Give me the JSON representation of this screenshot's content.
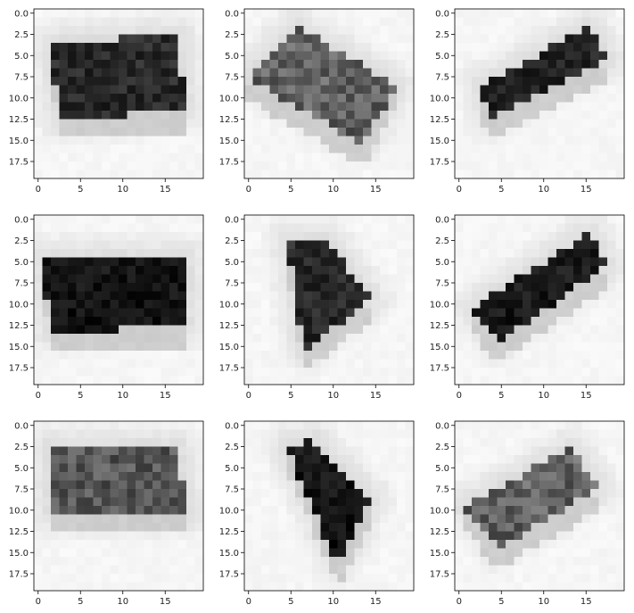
{
  "chart_data": {
    "type": "heatmap",
    "description": "3x3 grid of 20x20 grayscale pixel images",
    "grid": {
      "rows": 3,
      "cols": 3
    },
    "image_size": [
      20,
      20
    ],
    "x_ticks": [
      0,
      5,
      10,
      15
    ],
    "y_ticks": [
      0.0,
      2.5,
      5.0,
      7.5,
      10.0,
      12.5,
      15.0,
      17.5
    ],
    "x_tick_labels": [
      "0",
      "5",
      "10",
      "15"
    ],
    "y_tick_labels": [
      "0.0",
      "2.5",
      "5.0",
      "7.5",
      "10.0",
      "12.5",
      "15.0",
      "17.5"
    ],
    "colormap": "gray_r",
    "images": [
      {
        "shape": "parallelogram",
        "vertices": [
          [
            2,
            4
          ],
          [
            17,
            3
          ],
          [
            18,
            12
          ],
          [
            3,
            13
          ]
        ],
        "value": 0.82
      },
      {
        "shape": "parallelogram",
        "vertices": [
          [
            0,
            8
          ],
          [
            6,
            2
          ],
          [
            18,
            9
          ],
          [
            14,
            16
          ]
        ],
        "value": 0.6
      },
      {
        "shape": "parallelogram",
        "vertices": [
          [
            3,
            9
          ],
          [
            16,
            2
          ],
          [
            18,
            6
          ],
          [
            4,
            13
          ]
        ],
        "value": 0.85
      },
      {
        "shape": "parallelogram",
        "vertices": [
          [
            1,
            5
          ],
          [
            18,
            5
          ],
          [
            18,
            13
          ],
          [
            2,
            14
          ]
        ],
        "value": 0.9
      },
      {
        "shape": "parallelogram",
        "vertices": [
          [
            5,
            3
          ],
          [
            10,
            3
          ],
          [
            15,
            10
          ],
          [
            7,
            16
          ]
        ],
        "value": 0.82
      },
      {
        "shape": "parallelogram",
        "vertices": [
          [
            2,
            11
          ],
          [
            16,
            2
          ],
          [
            18,
            6
          ],
          [
            5,
            15
          ]
        ],
        "value": 0.88
      },
      {
        "shape": "parallelogram",
        "vertices": [
          [
            2,
            3
          ],
          [
            17,
            3
          ],
          [
            18,
            11
          ],
          [
            2,
            11
          ]
        ],
        "value": 0.65
      },
      {
        "shape": "parallelogram",
        "vertices": [
          [
            5,
            3
          ],
          [
            8,
            2
          ],
          [
            15,
            9
          ],
          [
            11,
            17
          ]
        ],
        "value": 0.9
      },
      {
        "shape": "parallelogram",
        "vertices": [
          [
            1,
            10
          ],
          [
            14,
            3
          ],
          [
            17,
            8
          ],
          [
            5,
            15
          ]
        ],
        "value": 0.6
      }
    ]
  }
}
